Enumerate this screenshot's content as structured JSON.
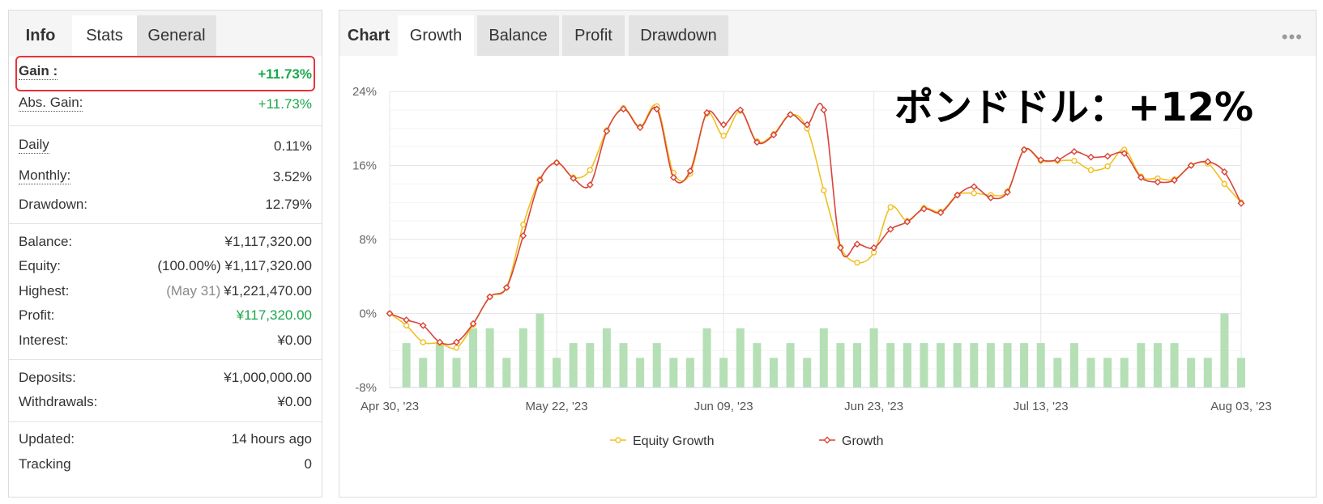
{
  "left_panel": {
    "tabs": [
      {
        "label": "Info",
        "state": "header"
      },
      {
        "label": "Stats",
        "state": "active"
      },
      {
        "label": "General",
        "state": "inactive"
      }
    ],
    "gain": {
      "label": "Gain :",
      "value": "+11.73%"
    },
    "abs_gain": {
      "label": "Abs. Gain:",
      "value": "+11.73%"
    },
    "daily": {
      "label": "Daily",
      "value": "0.11%"
    },
    "monthly": {
      "label": "Monthly:",
      "value": "3.52%"
    },
    "drawdown": {
      "label": "Drawdown:",
      "value": "12.79%"
    },
    "balance": {
      "label": "Balance:",
      "value": "¥1,117,320.00"
    },
    "equity": {
      "label": "Equity:",
      "pct": "(100.00%)",
      "value": "¥1,117,320.00"
    },
    "highest": {
      "label": "Highest:",
      "date": "(May 31)",
      "value": "¥1,221,470.00"
    },
    "profit": {
      "label": "Profit:",
      "value": "¥117,320.00"
    },
    "interest": {
      "label": "Interest:",
      "value": "¥0.00"
    },
    "deposits": {
      "label": "Deposits:",
      "value": "¥1,000,000.00"
    },
    "withdrawals": {
      "label": "Withdrawals:",
      "value": "¥0.00"
    },
    "updated": {
      "label": "Updated:",
      "value": "14 hours ago"
    },
    "tracking": {
      "label": "Tracking",
      "value": "0"
    }
  },
  "right_panel": {
    "tabs": [
      {
        "label": "Chart",
        "state": "header"
      },
      {
        "label": "Growth",
        "state": "active"
      },
      {
        "label": "Balance",
        "state": "inactive"
      },
      {
        "label": "Profit",
        "state": "inactive"
      },
      {
        "label": "Drawdown",
        "state": "inactive"
      }
    ],
    "more_icon": "•••",
    "overlay_text": "ポンドドル：+12%"
  },
  "colors": {
    "equity": "#f0c020",
    "growth": "#d9443a",
    "bars": "#b5dfb5",
    "gain_green": "#1aa84b",
    "highlight": "#e8333a"
  },
  "chart_data": {
    "type": "line",
    "ylim": [
      -8,
      24
    ],
    "y_ticks": [
      "24%",
      "16%",
      "8%",
      "0%",
      "-8%"
    ],
    "y_tick_values": [
      24,
      16,
      8,
      0,
      -8
    ],
    "x_tick_labels": [
      "Apr 30, '23",
      "May 22, '23",
      "Jun 09, '23",
      "Jun 23, '23",
      "Jul 13, '23",
      "Aug 03, '23"
    ],
    "x_tick_index": [
      0,
      10,
      20,
      29,
      39,
      51
    ],
    "n_points": 52,
    "series": [
      {
        "name": "Equity Growth",
        "values": [
          0,
          -1.3,
          -3.1,
          -3.2,
          -3.7,
          -1.2,
          1.8,
          2.8,
          9.6,
          14.5,
          16.3,
          14.7,
          15.5,
          19.8,
          22.2,
          20.2,
          22.4,
          15.2,
          15.1,
          21.6,
          19.2,
          21.9,
          18.6,
          19.4,
          21.5,
          20.0,
          13.3,
          7.2,
          5.5,
          6.6,
          11.5,
          10.0,
          11.4,
          11.0,
          12.8,
          13.0,
          12.8,
          13.2,
          17.7,
          16.5,
          16.5,
          16.5,
          15.5,
          15.9,
          17.7,
          14.8,
          14.6,
          14.5,
          16.0,
          16.2,
          14.0,
          12.0
        ]
      },
      {
        "name": "Growth",
        "values": [
          0,
          -0.7,
          -1.3,
          -3.1,
          -3.1,
          -1.1,
          1.8,
          2.8,
          8.4,
          14.4,
          16.3,
          14.6,
          13.9,
          19.7,
          22.1,
          20.1,
          22.1,
          14.7,
          15.4,
          21.7,
          20.4,
          22.0,
          18.5,
          19.3,
          21.5,
          20.4,
          22.0,
          7.1,
          7.5,
          7.1,
          9.1,
          9.9,
          11.3,
          10.9,
          12.8,
          13.7,
          12.5,
          13.1,
          17.7,
          16.6,
          16.6,
          17.5,
          16.9,
          17.0,
          17.3,
          14.7,
          14.2,
          14.4,
          16.0,
          16.4,
          15.3,
          11.9
        ]
      }
    ],
    "bars": [
      0,
      3,
      2,
      3,
      2,
      4,
      4,
      2,
      4,
      5,
      2,
      3,
      3,
      4,
      3,
      2,
      3,
      2,
      2,
      4,
      2,
      4,
      3,
      2,
      3,
      2,
      4,
      3,
      3,
      4,
      3,
      3,
      3,
      3,
      3,
      3,
      3,
      3,
      3,
      3,
      2,
      3,
      2,
      2,
      2,
      3,
      3,
      3,
      2,
      2,
      5,
      2
    ],
    "legend_position": "bottom-center",
    "grid": true
  }
}
